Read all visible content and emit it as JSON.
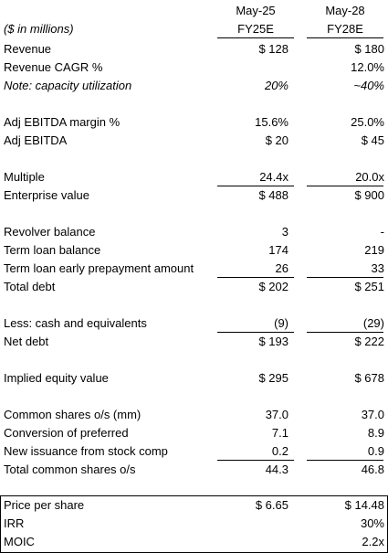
{
  "header": {
    "units": "($ in millions)",
    "col1_date": "May-25",
    "col1_label": "FY25E",
    "col2_date": "May-28",
    "col2_label": "FY28E"
  },
  "rows": [
    {
      "label": "Revenue",
      "v1": "$ 128",
      "v2": "$ 180"
    },
    {
      "label": "Revenue CAGR %",
      "v1": "",
      "v2": "12.0%"
    },
    {
      "label": "Note: capacity utilization",
      "v1": "20%",
      "v2": "~40%"
    },
    {
      "label": "Adj EBITDA margin %",
      "v1": "15.6%",
      "v2": "25.0%"
    },
    {
      "label": "Adj EBITDA",
      "v1": "$ 20",
      "v2": "$ 45"
    },
    {
      "label": "Multiple",
      "v1": "24.4x",
      "v2": "20.0x"
    },
    {
      "label": "Enterprise value",
      "v1": "$ 488",
      "v2": "$ 900"
    },
    {
      "label": "Revolver balance",
      "v1": "3",
      "v2": "-"
    },
    {
      "label": "Term loan balance",
      "v1": "174",
      "v2": "219"
    },
    {
      "label": "Term loan early prepayment amount",
      "v1": "26",
      "v2": "33"
    },
    {
      "label": "Total debt",
      "v1": "$ 202",
      "v2": "$ 251"
    },
    {
      "label": "Less: cash and equivalents",
      "v1": "(9)",
      "v2": "(29)"
    },
    {
      "label": "Net debt",
      "v1": "$ 193",
      "v2": "$ 222"
    },
    {
      "label": "Implied equity value",
      "v1": "$ 295",
      "v2": "$ 678"
    },
    {
      "label": "Common shares o/s (mm)",
      "v1": "37.0",
      "v2": "37.0"
    },
    {
      "label": "Conversion of preferred",
      "v1": "7.1",
      "v2": "8.9"
    },
    {
      "label": "New issuance from stock comp",
      "v1": "0.2",
      "v2": "0.9"
    },
    {
      "label": "Total common shares o/s",
      "v1": "44.3",
      "v2": "46.8"
    },
    {
      "label": "Price per share",
      "v1": "$ 6.65",
      "v2": "$ 14.48"
    },
    {
      "label": "IRR",
      "v1": "",
      "v2": "30%"
    },
    {
      "label": "MOIC",
      "v1": "",
      "v2": "2.2x"
    }
  ]
}
